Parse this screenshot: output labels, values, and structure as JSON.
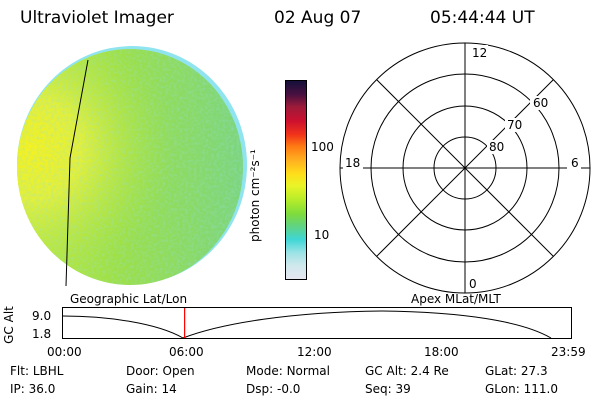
{
  "header": {
    "instrument": "Ultraviolet Imager",
    "date": "02 Aug 07",
    "time": "05:44:44 UT"
  },
  "image_panel": {
    "name": "auroral-uv-image",
    "dominant_colors": [
      "#9ee046",
      "#d8f03c",
      "#f2f220",
      "#62c7a8",
      "#5fd8e8"
    ]
  },
  "colorbar": {
    "label": "photon cm⁻²s⁻¹",
    "tick_100": "100",
    "tick_10": "10",
    "scale": "log",
    "colors": [
      "#e6e6ef",
      "#cfe8ec",
      "#9fe3e6",
      "#3fd6d6",
      "#62d37e",
      "#7fdc3b",
      "#b7ec2a",
      "#e8f427",
      "#ffde1b",
      "#ffb020",
      "#ff7a14",
      "#f0331a",
      "#cc1030",
      "#9c1b3a",
      "#4a1040",
      "#15103a"
    ]
  },
  "polar_plot": {
    "mlt_top": "12",
    "mlt_right": "6",
    "mlt_left": "18",
    "mlt_bottom": "0",
    "lat_60": "60",
    "lat_70": "70",
    "lat_80": "80"
  },
  "coord_labels": {
    "left": "Geographic Lat/Lon",
    "right": "Apex MLat/MLT"
  },
  "timeline": {
    "axis_label": "GC Alt",
    "y_max": "9.0",
    "y_min": "1.8",
    "x_ticks": [
      "00:00",
      "06:00",
      "12:00",
      "18:00",
      "23:59"
    ],
    "current_time_marker_color": "#ff0000",
    "current_time_fraction": 0.2394
  },
  "info": {
    "flt_label": "Flt:",
    "flt_value": "LBHL",
    "door_label": "Door:",
    "door_value": "Open",
    "mode_label": "Mode:",
    "mode_value": "Normal",
    "gcalt_label": "GC Alt:",
    "gcalt_value": "2.4 Re",
    "glat_label": "GLat:",
    "glat_value": "27.3",
    "ip_label": "IP:",
    "ip_value": "36.0",
    "gain_label": "Gain:",
    "gain_value": "14",
    "dsp_label": "Dsp:",
    "dsp_value": "-0.0",
    "seq_label": "Seq:",
    "seq_value": "39",
    "glon_label": "GLon:",
    "glon_value": "111.0"
  }
}
